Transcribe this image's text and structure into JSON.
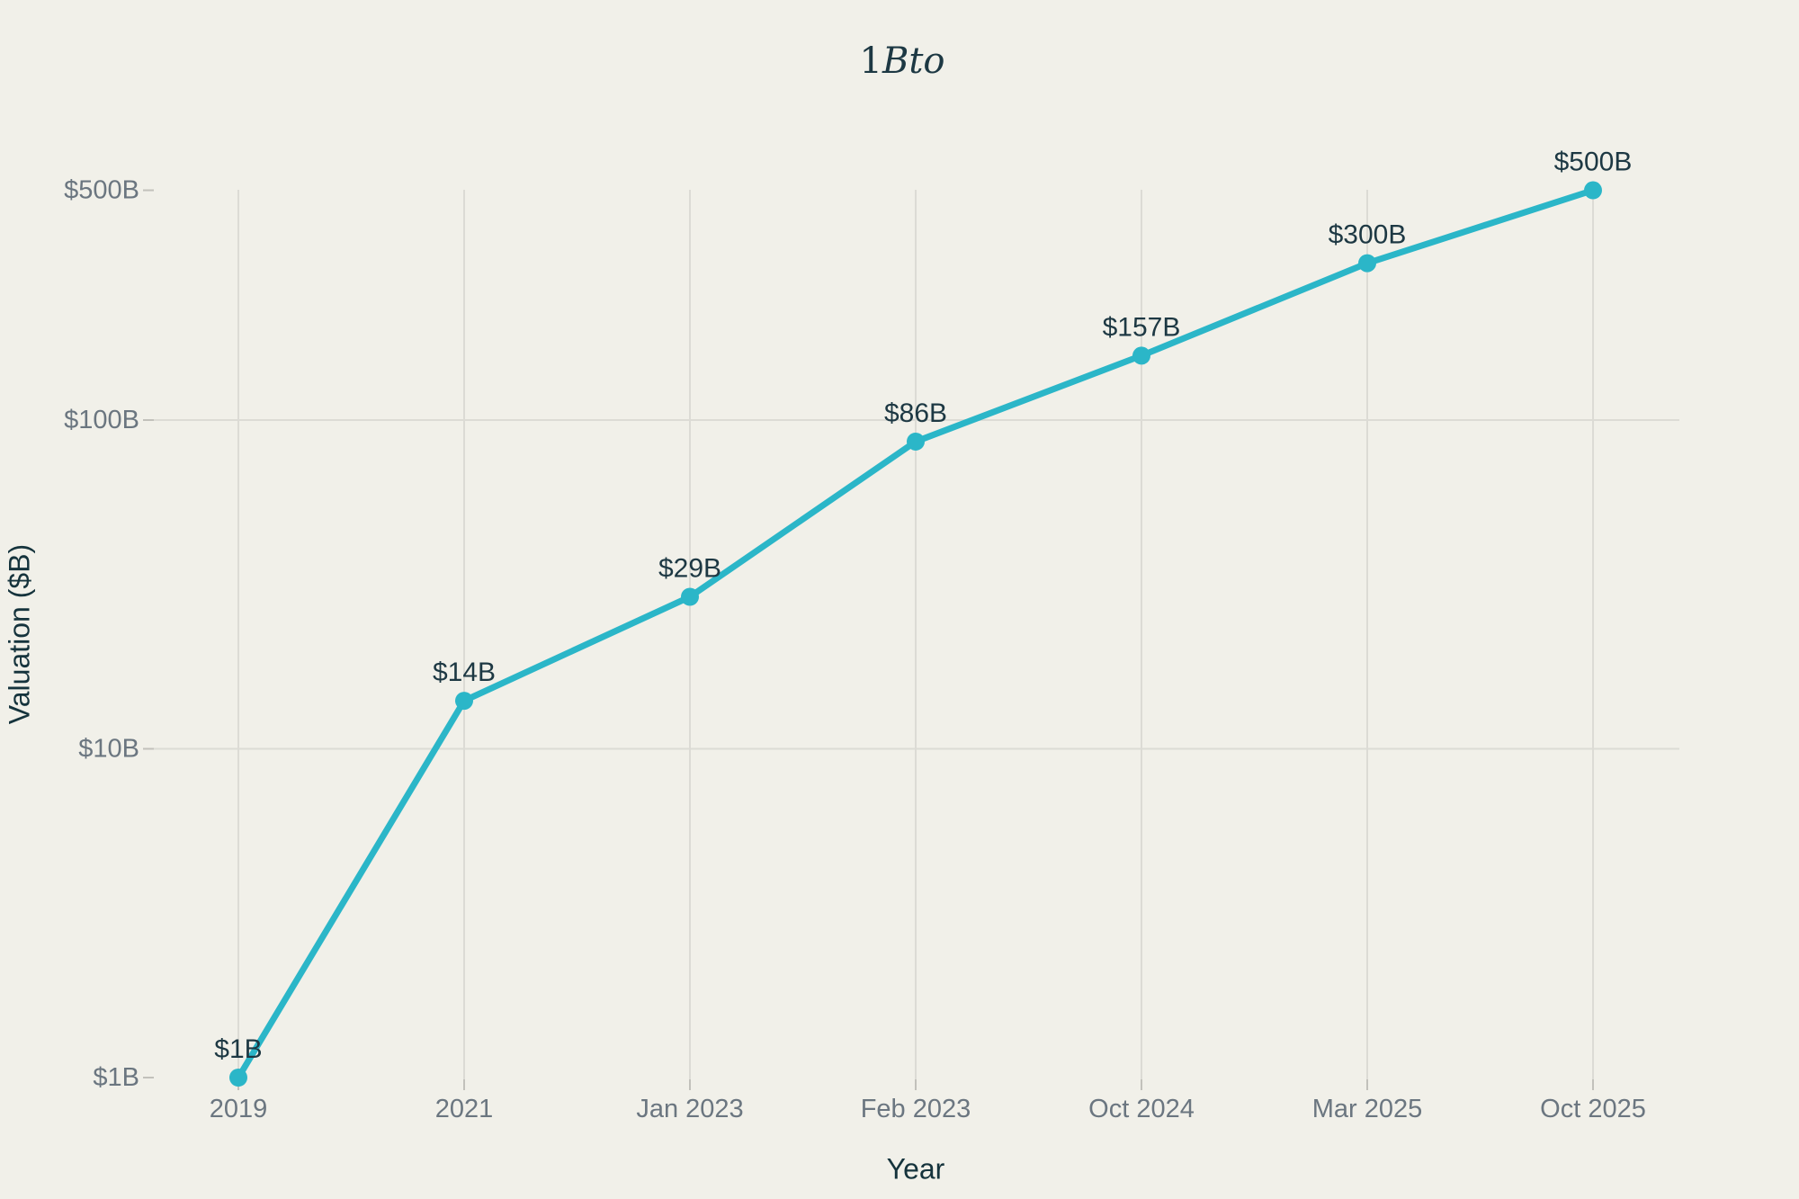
{
  "page": {
    "background": "#F1F0E9"
  },
  "chart_data": {
    "type": "line",
    "title": "1Bto",
    "title_upright": "1",
    "title_italic": "Bto",
    "xlabel": "Year",
    "ylabel": "Valuation ($B)",
    "categories": [
      "2019",
      "2021",
      "Jan 2023",
      "Feb 2023",
      "Oct 2024",
      "Mar 2025",
      "Oct 2025"
    ],
    "series": [
      {
        "name": "Valuation",
        "values": [
          1,
          14,
          29,
          86,
          157,
          300,
          500
        ],
        "point_labels": [
          "$1B",
          "$14B",
          "$29B",
          "$86B",
          "$157B",
          "$300B",
          "$500B"
        ]
      }
    ],
    "y_scale": "log",
    "ylim": [
      1,
      500
    ],
    "y_ticks": [
      {
        "value": 1,
        "label": "$1B"
      },
      {
        "value": 10,
        "label": "$10B"
      },
      {
        "value": 100,
        "label": "$100B"
      },
      {
        "value": 500,
        "label": "$500B"
      }
    ],
    "grid": {
      "vertical": true,
      "horizontal_values": [
        10,
        100
      ]
    },
    "legend": "none",
    "colors": {
      "line": "#2BB6C8",
      "marker": "#2BB6C8",
      "gridline": "#DCDBD5",
      "tick": "#C2C1BB",
      "tick_label": "#6B7680",
      "data_label": "#1D3843",
      "axis_title": "#15333C",
      "title": "#1D3843",
      "background": "#F1F0E9"
    }
  }
}
